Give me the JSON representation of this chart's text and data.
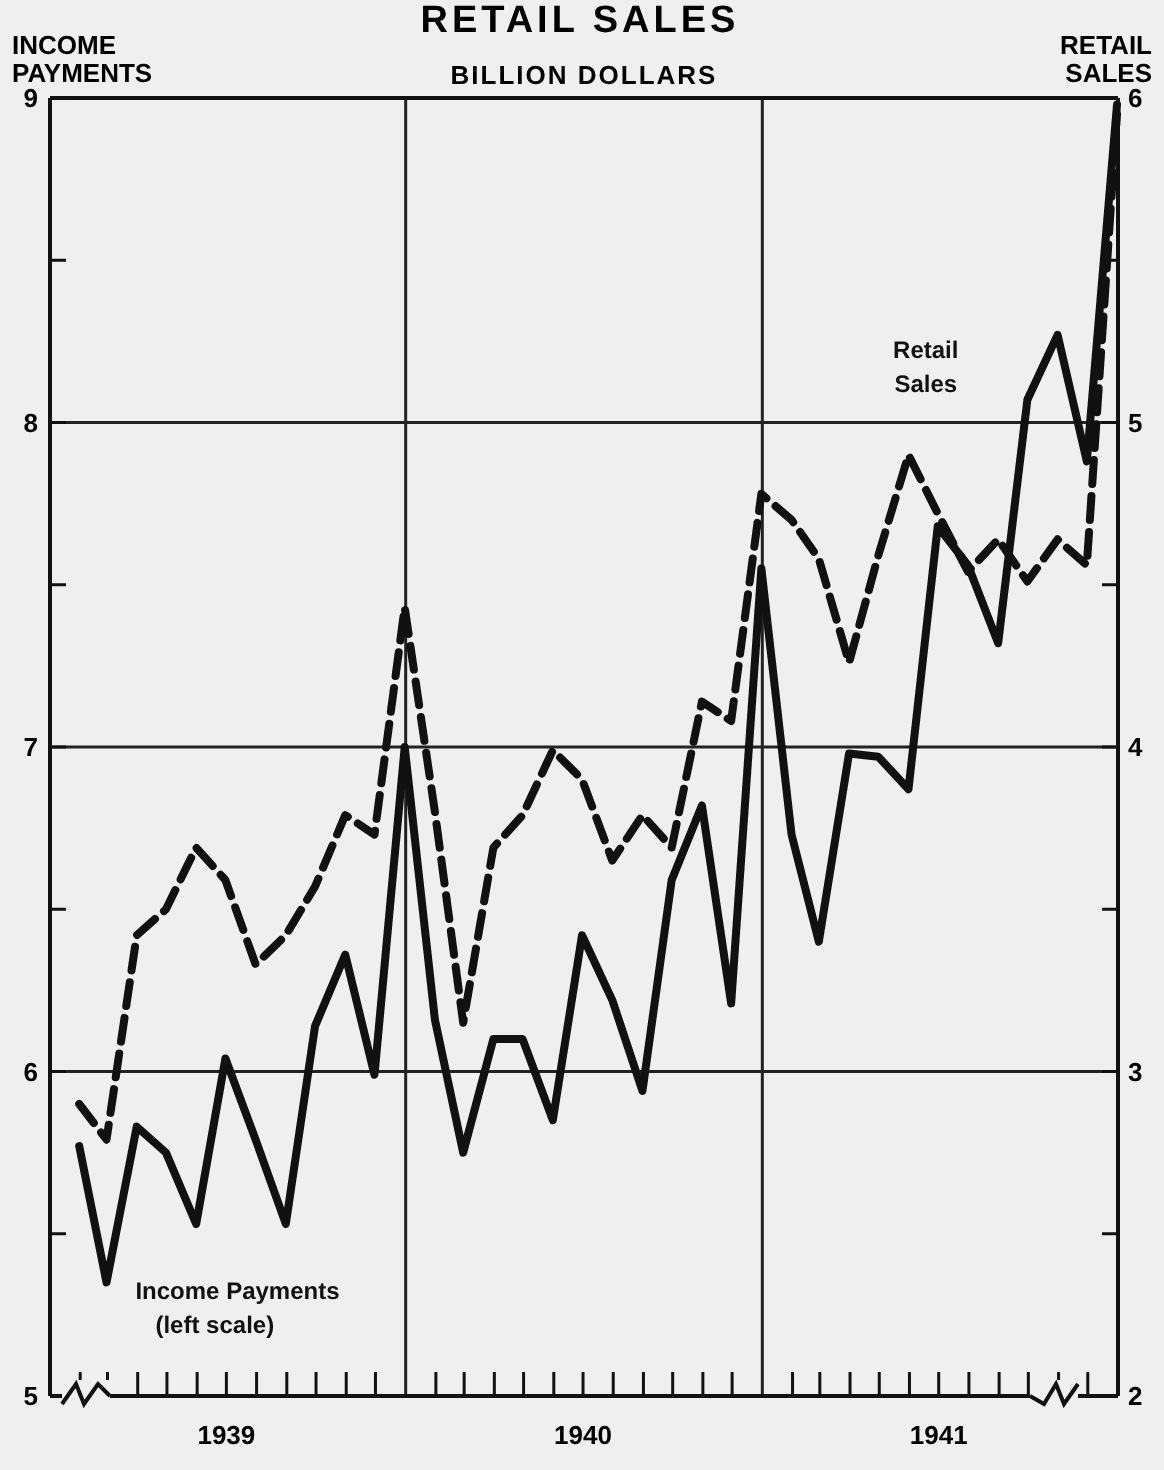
{
  "chart_data": {
    "type": "line",
    "title": "RETAIL SALES",
    "subtitle": "BILLION DOLLARS",
    "ylabel": "INCOME PAYMENTS",
    "y2label": "RETAIL SALES",
    "x": [
      "1939-01-31",
      "1939-02-28",
      "1939-03-31",
      "1939-04-30",
      "1939-05-31",
      "1939-06-30",
      "1939-07-31",
      "1939-08-31",
      "1939-09-30",
      "1939-10-31",
      "1939-11-30",
      "1939-12-31",
      "1940-01-31",
      "1940-02-29",
      "1940-03-31",
      "1940-04-30",
      "1940-05-31",
      "1940-06-30",
      "1940-07-31",
      "1940-08-31",
      "1940-09-30",
      "1940-10-31",
      "1940-11-30",
      "1940-12-31",
      "1941-01-31",
      "1941-02-28",
      "1941-03-31",
      "1941-04-30",
      "1941-05-31",
      "1941-06-30",
      "1941-07-31",
      "1941-08-31",
      "1941-09-30",
      "1941-10-31",
      "1941-11-30",
      "1941-12-31"
    ],
    "xlim": [
      "1939-01-01",
      "1942-01-01"
    ],
    "xticks": [
      {
        "value": "1939-02-01",
        "label": null
      },
      {
        "value": "1939-03-01",
        "label": null
      },
      {
        "value": "1939-04-01",
        "label": null
      },
      {
        "value": "1939-05-01",
        "label": null
      },
      {
        "value": "1939-06-01",
        "label": null
      },
      {
        "value": "1939-07-01",
        "label": "1939"
      },
      {
        "value": "1939-08-01",
        "label": null
      },
      {
        "value": "1939-09-01",
        "label": null
      },
      {
        "value": "1939-10-01",
        "label": null
      },
      {
        "value": "1939-11-01",
        "label": null
      },
      {
        "value": "1939-12-01",
        "label": null
      },
      {
        "value": "1940-02-01",
        "label": null
      },
      {
        "value": "1940-03-01",
        "label": null
      },
      {
        "value": "1940-04-01",
        "label": null
      },
      {
        "value": "1940-05-01",
        "label": null
      },
      {
        "value": "1940-06-01",
        "label": null
      },
      {
        "value": "1940-07-01",
        "label": "1940"
      },
      {
        "value": "1940-08-01",
        "label": null
      },
      {
        "value": "1940-09-01",
        "label": null
      },
      {
        "value": "1940-10-01",
        "label": null
      },
      {
        "value": "1940-11-01",
        "label": null
      },
      {
        "value": "1940-12-01",
        "label": null
      },
      {
        "value": "1941-02-01",
        "label": null
      },
      {
        "value": "1941-03-01",
        "label": null
      },
      {
        "value": "1941-04-01",
        "label": null
      },
      {
        "value": "1941-05-01",
        "label": null
      },
      {
        "value": "1941-06-01",
        "label": null
      },
      {
        "value": "1941-07-01",
        "label": "1941"
      },
      {
        "value": "1941-08-01",
        "label": null
      },
      {
        "value": "1941-09-01",
        "label": null
      },
      {
        "value": "1941-10-01",
        "label": null
      },
      {
        "value": "1941-11-01",
        "label": null
      },
      {
        "value": "1941-12-01",
        "label": null
      }
    ],
    "ylim": [
      5,
      9
    ],
    "yticks": [
      5,
      {
        "value": 5.5,
        "label": null
      },
      6,
      {
        "value": 6.5,
        "label": null
      },
      7,
      {
        "value": 7.5,
        "label": null
      },
      8,
      {
        "value": 8.5,
        "label": null
      },
      9
    ],
    "y2lim": [
      2,
      6
    ],
    "y2ticks": [
      2,
      {
        "value": 2.5,
        "label": null
      },
      3,
      {
        "value": 3.5,
        "label": null
      },
      4,
      {
        "value": 4.5,
        "label": null
      },
      5,
      {
        "value": 5.5,
        "label": null
      },
      6
    ],
    "grid": "y",
    "ref_lines": [
      {
        "axis": "x",
        "value": "1940-01-01"
      },
      {
        "axis": "x",
        "value": "1941-01-01"
      }
    ],
    "series": [
      {
        "name": "Income Payments (left scale)",
        "color": "#111111",
        "line_style": "solid",
        "values": [
          5.77,
          5.35,
          5.83,
          5.75,
          5.53,
          6.04,
          5.79,
          5.53,
          6.14,
          6.36,
          5.99,
          7.0,
          6.16,
          5.75,
          6.1,
          6.1,
          5.85,
          6.42,
          6.22,
          5.94,
          6.59,
          6.82,
          6.21,
          7.55,
          6.73,
          6.4,
          6.98,
          6.97,
          6.87,
          7.68,
          7.56,
          7.32,
          8.07,
          8.27,
          7.88,
          8.98
        ]
      },
      {
        "name": "Retail Sales",
        "color": "#111111",
        "line_style": "dashed",
        "axis": "y2",
        "values": [
          2.9,
          2.79,
          3.42,
          3.5,
          3.69,
          3.59,
          3.33,
          3.42,
          3.57,
          3.79,
          3.73,
          4.43,
          3.8,
          3.15,
          3.69,
          3.79,
          3.99,
          3.9,
          3.65,
          3.79,
          3.69,
          4.14,
          4.08,
          4.78,
          4.7,
          4.58,
          4.26,
          4.59,
          4.9,
          4.72,
          4.54,
          4.64,
          4.51,
          4.64,
          4.56,
          5.95
        ]
      }
    ]
  }
}
